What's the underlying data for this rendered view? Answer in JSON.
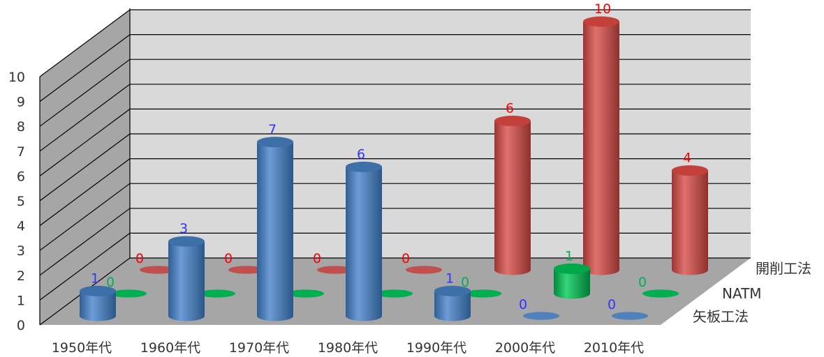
{
  "chart_data": {
    "type": "bar",
    "subtype": "3d-cylinder",
    "categories": [
      "1950年代",
      "1960年代",
      "1970年代",
      "1980年代",
      "1990年代",
      "2000年代",
      "2010年代"
    ],
    "series": [
      {
        "name": "開削工法",
        "values": [
          0,
          0,
          0,
          0,
          6,
          10,
          4
        ],
        "color": "#c0504d",
        "label_color": "#ff0000"
      },
      {
        "name": "NATM",
        "values": [
          0,
          0,
          0,
          0,
          0,
          1,
          0
        ],
        "color": "#00b050",
        "label_color": "#00b050"
      },
      {
        "name": "矢板工法",
        "values": [
          1,
          3,
          7,
          6,
          1,
          0,
          0
        ],
        "color": "#4f81bd",
        "label_color": "#3333ff"
      }
    ],
    "yticks": [
      "0",
      "1",
      "2",
      "3",
      "4",
      "5",
      "6",
      "7",
      "8",
      "9",
      "10"
    ],
    "ylim": [
      0,
      10
    ],
    "grid": true,
    "legend": "none",
    "title": "",
    "xlabel": "",
    "ylabel": ""
  }
}
